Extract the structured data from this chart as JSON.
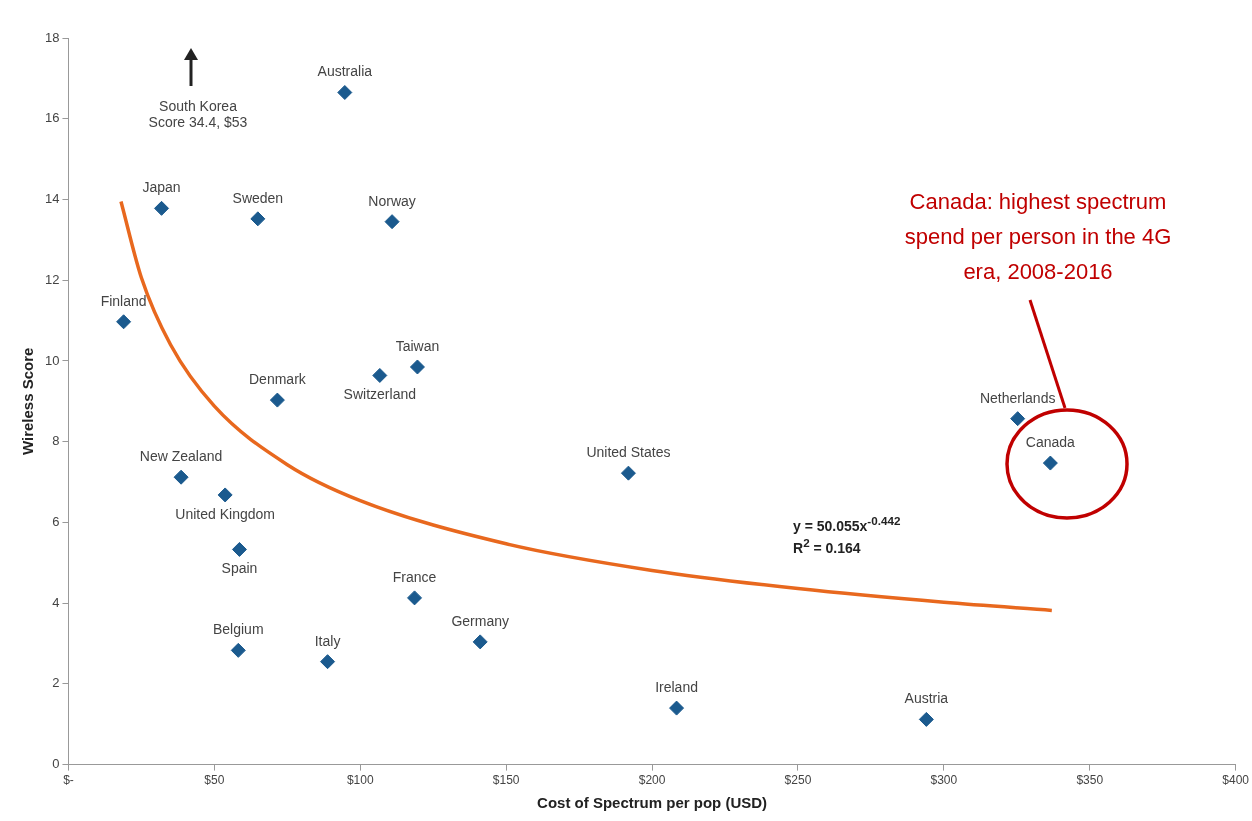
{
  "chart_data": {
    "type": "scatter",
    "xlabel": "Cost of Spectrum per pop (USD)",
    "ylabel": "Wireless Score",
    "xlim": [
      0,
      400
    ],
    "xticks": [
      {
        "value": 0,
        "label": "$-"
      },
      {
        "value": 50,
        "label": "$50"
      },
      {
        "value": 100,
        "label": "$100"
      },
      {
        "value": 150,
        "label": "$150"
      },
      {
        "value": 200,
        "label": "$200"
      },
      {
        "value": 250,
        "label": "$250"
      },
      {
        "value": 300,
        "label": "$300"
      },
      {
        "value": 350,
        "label": "$350"
      },
      {
        "value": 400,
        "label": "$400"
      }
    ],
    "ylim": [
      0,
      18
    ],
    "yticks": [
      0,
      2,
      4,
      6,
      8,
      10,
      12,
      14,
      16,
      18
    ],
    "grid": false,
    "legend": false,
    "marker": "diamond",
    "series": [
      {
        "color": "#1b5a8e",
        "x": [
          94.7,
          31.9,
          64.9,
          110.9,
          18.9,
          119.6,
          106.7,
          71.6,
          325.3,
          336.5,
          191.9,
          38.6,
          53.7,
          58.6,
          118.6,
          141.1,
          58.2,
          88.8,
          208.4,
          294.0
        ],
        "values": [
          16.65,
          13.78,
          13.52,
          13.45,
          10.97,
          9.85,
          9.64,
          9.03,
          8.57,
          7.47,
          7.22,
          7.12,
          6.68,
          5.33,
          4.13,
          3.04,
          2.83,
          2.55,
          1.4,
          1.12
        ],
        "value_labels": [
          "Australia",
          "Japan",
          "Sweden",
          "Norway",
          "Finland",
          "Taiwan",
          "Switzerland",
          "Denmark",
          "Netherlands",
          "Canada",
          "United States",
          "New Zealand",
          "United Kingdom",
          "Spain",
          "France",
          "Germany",
          "Belgium",
          "Italy",
          "Ireland",
          "Austria"
        ]
      },
      {
        "type": "line",
        "color": "#e8681e",
        "marker": "none",
        "x": [
          18,
          25,
          35,
          50,
          75,
          100,
          150,
          200,
          250,
          300,
          337
        ],
        "values": [
          13.95,
          12.06,
          10.4,
          8.88,
          7.43,
          6.54,
          5.47,
          4.81,
          4.36,
          4.02,
          3.82
        ]
      }
    ],
    "annotations": [
      "South Korea Score 34.4, $53",
      "y = 50.055x$^{-0.442}$",
      "R$^{2}$ = 0.164",
      "Canada: highest spectrum spend per person in the 4G era, 2008-2016"
    ]
  }
}
